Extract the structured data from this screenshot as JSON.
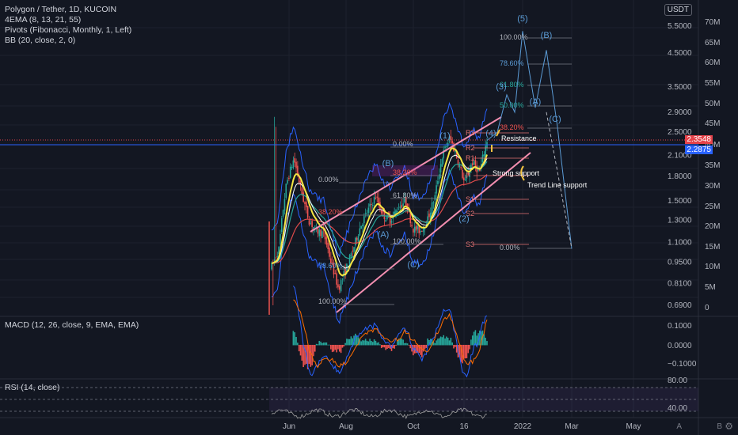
{
  "legend": {
    "symbol": "Polygon / Tether, 1D, KUCOIN",
    "ema": "4EMA (8, 13, 21, 55)",
    "pivots": "Pivots (Fibonacci, Monthly, 1, Left)",
    "bb": "BB (20, close, 2, 0)"
  },
  "macd_label": "MACD (12, 26, close, 9, EMA, EMA)",
  "rsi_label": "RSI (14, close)",
  "currency": "USDT",
  "currency_badge": "USDT",
  "price_labels": [
    "5.5000",
    "4.5000",
    "3.5000",
    "2.9000",
    "2.5000",
    "2.1000",
    "1.8000",
    "1.5000",
    "1.3000",
    "1.1000",
    "0.9500",
    "0.8100",
    "0.6900"
  ],
  "volume_labels": [
    "70M",
    "65M",
    "60M",
    "55M",
    "50M",
    "45M",
    "40M",
    "35M",
    "30M",
    "25M",
    "20M",
    "15M",
    "10M",
    "5M",
    "0"
  ],
  "macd_labels": [
    "0.1000",
    "0.0000",
    "−0.1000"
  ],
  "rsi_labels": [
    "80.00",
    "40.00"
  ],
  "time_labels": [
    "Jun",
    "Aug",
    "Oct",
    "16",
    "2022",
    "Mar",
    "May"
  ],
  "last_price": "2.3548",
  "ema_price": "2.2875",
  "corner_a": "A",
  "corner_b": "B",
  "annotations": {
    "resistance": "Resistance",
    "strong_support": "Strong support",
    "trend_support": "Trend Line support"
  },
  "fib_labels_left": [
    "0.00%",
    "38.20%",
    "78.60%",
    "100.00%"
  ],
  "fib_labels_mid": [
    "0.00%",
    "38.20%",
    "61.80%",
    "100.00%"
  ],
  "fib_labels_right": [
    "100.00%",
    "78.60%",
    "61.80%",
    "50.00%",
    "38.20%",
    "0.00%"
  ],
  "pivot_labels": [
    "R3",
    "R2",
    "R1",
    "P",
    "S1",
    "S2",
    "S3"
  ],
  "wave_labels": [
    "(1)",
    "(2)",
    "(3)",
    "(4)",
    "(5)",
    "(A)",
    "(B)",
    "(C)"
  ],
  "colors": {
    "background": "#131722",
    "up_candle": "#26a69a",
    "down_candle": "#ef5350",
    "ema_yellow": "#f5e642",
    "bb_blue": "#2962ff",
    "channel": "#f48fb1",
    "wave_blue": "#5b9bd5",
    "pivot_red": "#e57373"
  },
  "chart_data": {
    "type": "candlestick",
    "title": "Polygon / Tether, 1D, KUCOIN",
    "period_labels": [
      "Jun",
      "Aug",
      "Oct",
      "16",
      "2022",
      "Mar",
      "May"
    ],
    "price_axis": [
      0.69,
      5.5
    ],
    "price_scale": "log",
    "last_close": 2.3548,
    "price_path_close": [
      0.92,
      1.05,
      1.7,
      2.05,
      1.6,
      1.3,
      1.2,
      1.18,
      0.95,
      0.78,
      0.9,
      1.05,
      1.25,
      1.4,
      1.55,
      1.35,
      1.3,
      1.42,
      1.5,
      1.22,
      1.2,
      1.3,
      1.55,
      2.1,
      2.4,
      2.05,
      1.7,
      2.0,
      1.85,
      2.35
    ],
    "projection": [
      2.35,
      2.5,
      3.3,
      2.9,
      5.3,
      3.0,
      4.6,
      2.6,
      1.05
    ],
    "macd_axis": [
      -0.1,
      0.1
    ],
    "rsi_axis": [
      40,
      80
    ],
    "volume_axis": [
      0,
      70
    ]
  }
}
